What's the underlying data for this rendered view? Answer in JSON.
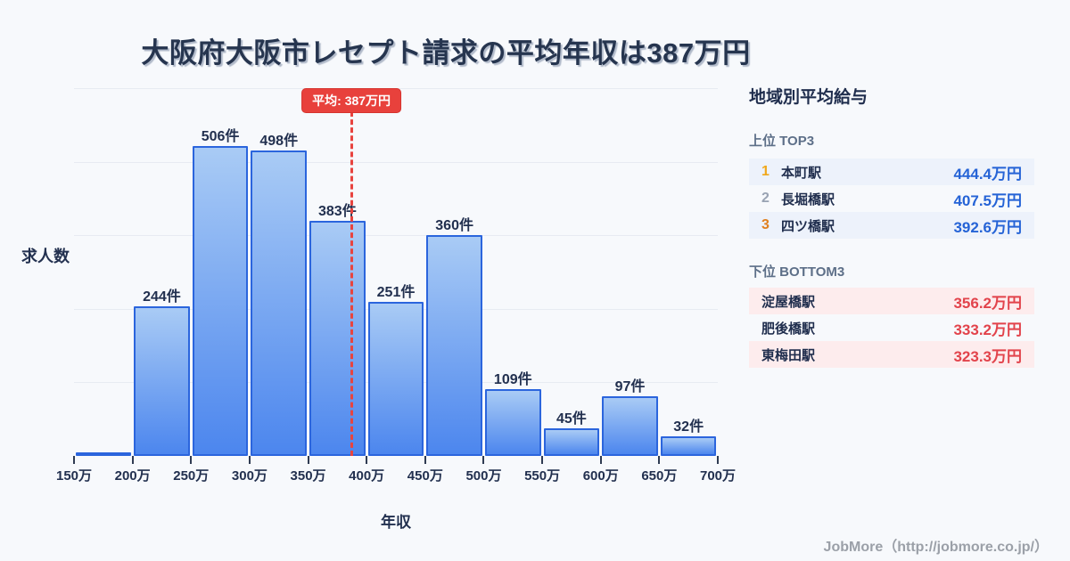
{
  "title": "大阪府大阪市レセプト請求の平均年収は387万円",
  "chart_data": {
    "type": "bar",
    "title": "大阪府大阪市レセプト請求の平均年収は387万円",
    "xlabel": "年収",
    "ylabel": "求人数",
    "x_tick_labels": [
      "150万",
      "200万",
      "250万",
      "300万",
      "350万",
      "400万",
      "450万",
      "500万",
      "550万",
      "600万",
      "650万",
      "700万"
    ],
    "bin_edges_man_yen": [
      150,
      200,
      250,
      300,
      350,
      400,
      450,
      500,
      550,
      600,
      650,
      700
    ],
    "values": [
      5,
      244,
      506,
      498,
      383,
      251,
      360,
      109,
      45,
      97,
      32
    ],
    "bar_labels": [
      "",
      "244件",
      "506件",
      "498件",
      "383件",
      "251件",
      "360件",
      "109件",
      "45件",
      "97件",
      "32件"
    ],
    "ylim": [
      0,
      600
    ],
    "grid": "horizontal",
    "gridline_count": 5,
    "average": {
      "value": 387,
      "label": "平均: 387万円"
    }
  },
  "side_panel": {
    "title": "地域別平均給与",
    "top": {
      "heading": "上位 TOP3",
      "rows": [
        {
          "rank": "1",
          "station": "本町駅",
          "value": "444.4万円"
        },
        {
          "rank": "2",
          "station": "長堀橋駅",
          "value": "407.5万円"
        },
        {
          "rank": "3",
          "station": "四ツ橋駅",
          "value": "392.6万円"
        }
      ]
    },
    "bottom": {
      "heading": "下位 BOTTOM3",
      "rows": [
        {
          "station": "淀屋橋駅",
          "value": "356.2万円"
        },
        {
          "station": "肥後橋駅",
          "value": "333.2万円"
        },
        {
          "station": "東梅田駅",
          "value": "323.3万円"
        }
      ]
    }
  },
  "footer": {
    "credit": "JobMore（http://jobmore.co.jp/）"
  },
  "colors": {
    "background": "#f7f9fc",
    "title_text": "#26354f",
    "bar_gradient_top": "#a9cbf5",
    "bar_gradient_bottom": "#4c86ee",
    "bar_border": "#2b65dd",
    "bar_label": "#22304f",
    "gridline": "#e7ebf2",
    "axis_text": "#22304f",
    "average_line": "#e8443f",
    "average_badge_bg": "#e8413c",
    "panel_title": "#1f2d4d",
    "section_heading": "#5d6f88",
    "row_alt_top_bg": "#edf2fb",
    "row_alt_bottom_bg": "#fdeced",
    "station_text": "#1f2d4d",
    "value_top": "#2563d6",
    "value_bottom": "#e2434b",
    "rank1": "#f0a81c",
    "rank2": "#99a3b3",
    "rank3": "#e0801f",
    "footer_text": "#9ba0a8"
  }
}
